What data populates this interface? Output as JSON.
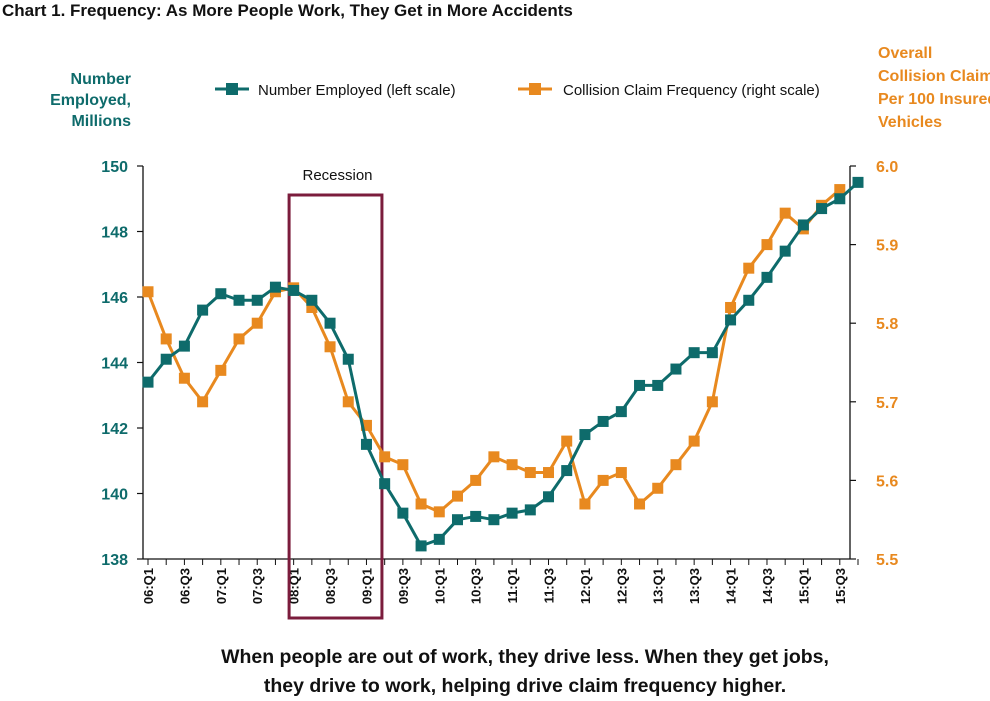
{
  "title": "Chart 1. Frequency: As More People Work, They Get in More Accidents",
  "caption": {
    "line1": "When people are out of work, they drive less. When they get jobs,",
    "line2": "they drive to work, helping drive claim frequency higher."
  },
  "colors": {
    "employed": "#0e6b6b",
    "frequency": "#e8891f",
    "recession": "#7b1c3c"
  },
  "chart_data": {
    "type": "line",
    "left_axis_title": [
      "Number",
      "Employed,",
      "Millions"
    ],
    "right_axis_title": [
      "Overall",
      "Collision Claims",
      "Per 100 Insured",
      "Vehicles"
    ],
    "left_ylim": [
      138,
      150
    ],
    "left_ticks": [
      "138",
      "140",
      "142",
      "144",
      "146",
      "148",
      "150"
    ],
    "right_ylim": [
      5.5,
      6.0
    ],
    "right_ticks": [
      "5.5",
      "5.6",
      "5.7",
      "5.8",
      "5.9",
      "6.0"
    ],
    "x_tick_labels": [
      "06:Q1",
      "06:Q3",
      "07:Q1",
      "07:Q3",
      "08:Q1",
      "08:Q3",
      "09:Q1",
      "09:Q3",
      "10:Q1",
      "10:Q3",
      "11:Q1",
      "11:Q3",
      "12:Q1",
      "12:Q3",
      "13:Q1",
      "13:Q3",
      "14:Q1",
      "14:Q3",
      "15:Q1",
      "15:Q3"
    ],
    "x": [
      "06:Q1",
      "06:Q2",
      "06:Q3",
      "06:Q4",
      "07:Q1",
      "07:Q2",
      "07:Q3",
      "07:Q4",
      "08:Q1",
      "08:Q2",
      "08:Q3",
      "08:Q4",
      "09:Q1",
      "09:Q2",
      "09:Q3",
      "09:Q4",
      "10:Q1",
      "10:Q2",
      "10:Q3",
      "10:Q4",
      "11:Q1",
      "11:Q2",
      "11:Q3",
      "11:Q4",
      "12:Q1",
      "12:Q2",
      "12:Q3",
      "12:Q4",
      "13:Q1",
      "13:Q2",
      "13:Q3",
      "13:Q4",
      "14:Q1",
      "14:Q2",
      "14:Q3",
      "14:Q4",
      "15:Q1",
      "15:Q2",
      "15:Q3",
      "15:Q4"
    ],
    "annotation": {
      "label": "Recession",
      "start": "08:Q1",
      "end": "09:Q2"
    },
    "legend_position": "top",
    "series": [
      {
        "name": "Number Employed (left scale)",
        "axis": "left",
        "values": [
          143.4,
          144.1,
          144.5,
          145.6,
          146.1,
          145.9,
          145.9,
          146.3,
          146.2,
          145.9,
          145.2,
          144.1,
          141.5,
          140.3,
          139.4,
          138.4,
          138.6,
          139.2,
          139.3,
          139.2,
          139.4,
          139.5,
          139.9,
          140.7,
          141.8,
          142.2,
          142.5,
          143.3,
          143.3,
          143.8,
          144.3,
          144.3,
          145.3,
          145.9,
          146.6,
          147.4,
          148.2,
          148.7,
          149.0,
          149.5
        ]
      },
      {
        "name": "Collision Claim Frequency (right scale)",
        "axis": "right",
        "values": [
          5.84,
          5.78,
          5.73,
          5.7,
          5.74,
          5.78,
          5.8,
          5.84,
          5.845,
          5.82,
          5.77,
          5.7,
          5.67,
          5.63,
          5.62,
          5.57,
          5.56,
          5.58,
          5.6,
          5.63,
          5.62,
          5.61,
          5.61,
          5.65,
          5.57,
          5.6,
          5.61,
          5.57,
          5.59,
          5.62,
          5.65,
          5.7,
          5.82,
          5.87,
          5.9,
          5.94,
          5.92,
          5.95,
          5.97,
          null
        ]
      }
    ]
  }
}
